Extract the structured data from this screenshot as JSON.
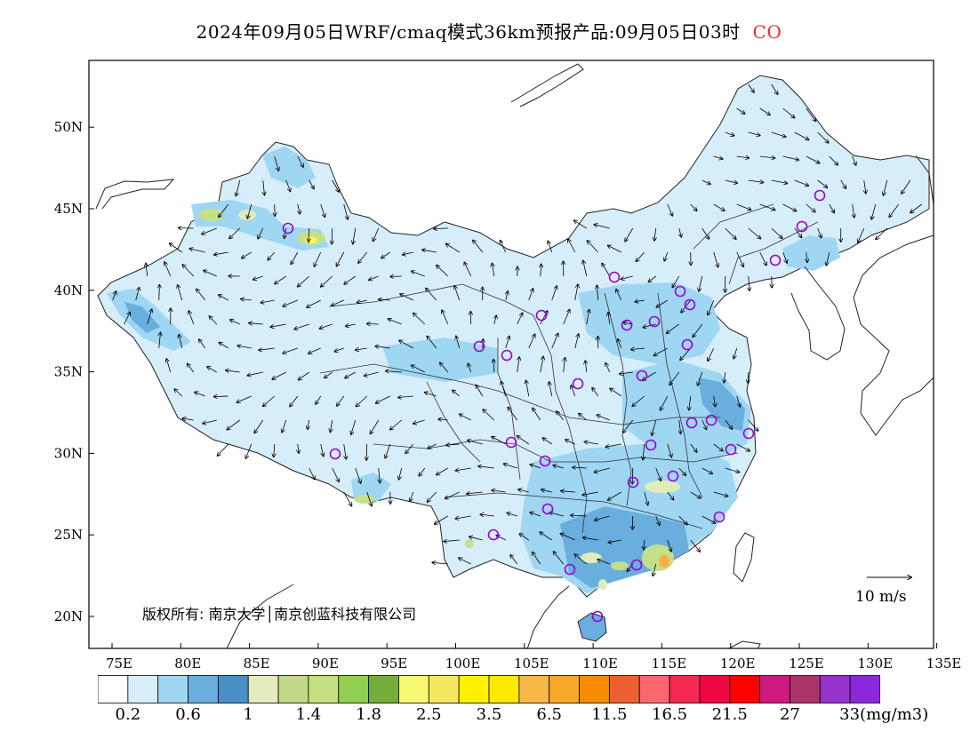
{
  "title": {
    "text": "2024年09月05日WRF/cmaq模式36km预报产品:09月05日03时",
    "pollutant": "CO",
    "pollutant_color": "#e23030"
  },
  "map": {
    "lon_range": [
      73,
      135
    ],
    "lat_range": [
      18,
      54
    ],
    "x_ticks": [
      "75E",
      "80E",
      "85E",
      "90E",
      "95E",
      "100E",
      "105E",
      "110E",
      "115E",
      "120E",
      "125E",
      "130E",
      "135E"
    ],
    "y_ticks": [
      "20N",
      "25N",
      "30N",
      "35N",
      "40N",
      "45N",
      "50N"
    ],
    "copyright": "版权所有: 南京大学│南京创蓝科技有限公司",
    "wind_reference": "10 m/s",
    "field_colors": {
      "base": "#d6eefa",
      "light": "#9fd6f2",
      "mid": "#6aaede",
      "dark": "#4a8fc6",
      "pale_green": "#e0ecbc",
      "green": "#c4e08a",
      "yellow": "#fcf35a",
      "orange": "#f8b040"
    },
    "station_color": "#9a00d6"
  },
  "legend": {
    "colors": [
      "#ffffff",
      "#d6eefa",
      "#9fd6f2",
      "#6aaede",
      "#4a8fc6",
      "#e2ecbc",
      "#c0d888",
      "#c4e080",
      "#92ce50",
      "#74ae38",
      "#f6f870",
      "#f4e860",
      "#fff200",
      "#fde800",
      "#f8b848",
      "#f8a828",
      "#f88c00",
      "#ef6030",
      "#fe6670",
      "#f42850",
      "#f00842",
      "#fd0000",
      "#cd1a80",
      "#ad3468",
      "#9832cc",
      "#8c28dc"
    ],
    "labels": [
      "0.2",
      "0.6",
      "1",
      "1.4",
      "1.8",
      "2.5",
      "3.5",
      "6.5",
      "11.5",
      "16.5",
      "21.5",
      "27",
      "33(mg/m3)"
    ]
  }
}
